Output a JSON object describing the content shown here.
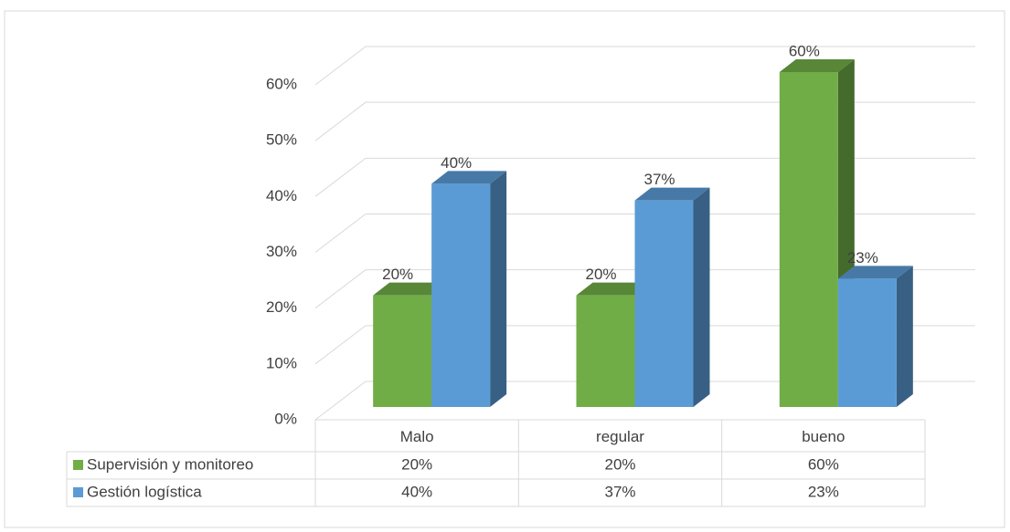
{
  "chart_data": {
    "type": "bar",
    "categories": [
      "Malo",
      "regular",
      "bueno"
    ],
    "series": [
      {
        "name": "Supervisión y monitoreo",
        "color": "#70ad47",
        "values": [
          20,
          20,
          60
        ],
        "value_labels": [
          "20%",
          "20%",
          "60%"
        ]
      },
      {
        "name": "Gestión logística",
        "color": "#5b9bd5",
        "values": [
          40,
          37,
          23
        ],
        "value_labels": [
          "40%",
          "37%",
          "23%"
        ]
      }
    ],
    "ylim": [
      0,
      60
    ],
    "yticks": [
      {
        "value": 0,
        "label": "0%"
      },
      {
        "value": 10,
        "label": "10%"
      },
      {
        "value": 20,
        "label": "20%"
      },
      {
        "value": 30,
        "label": "30%"
      },
      {
        "value": 40,
        "label": "40%"
      },
      {
        "value": 50,
        "label": "50%"
      },
      {
        "value": 60,
        "label": "60%"
      }
    ],
    "grid": true
  }
}
